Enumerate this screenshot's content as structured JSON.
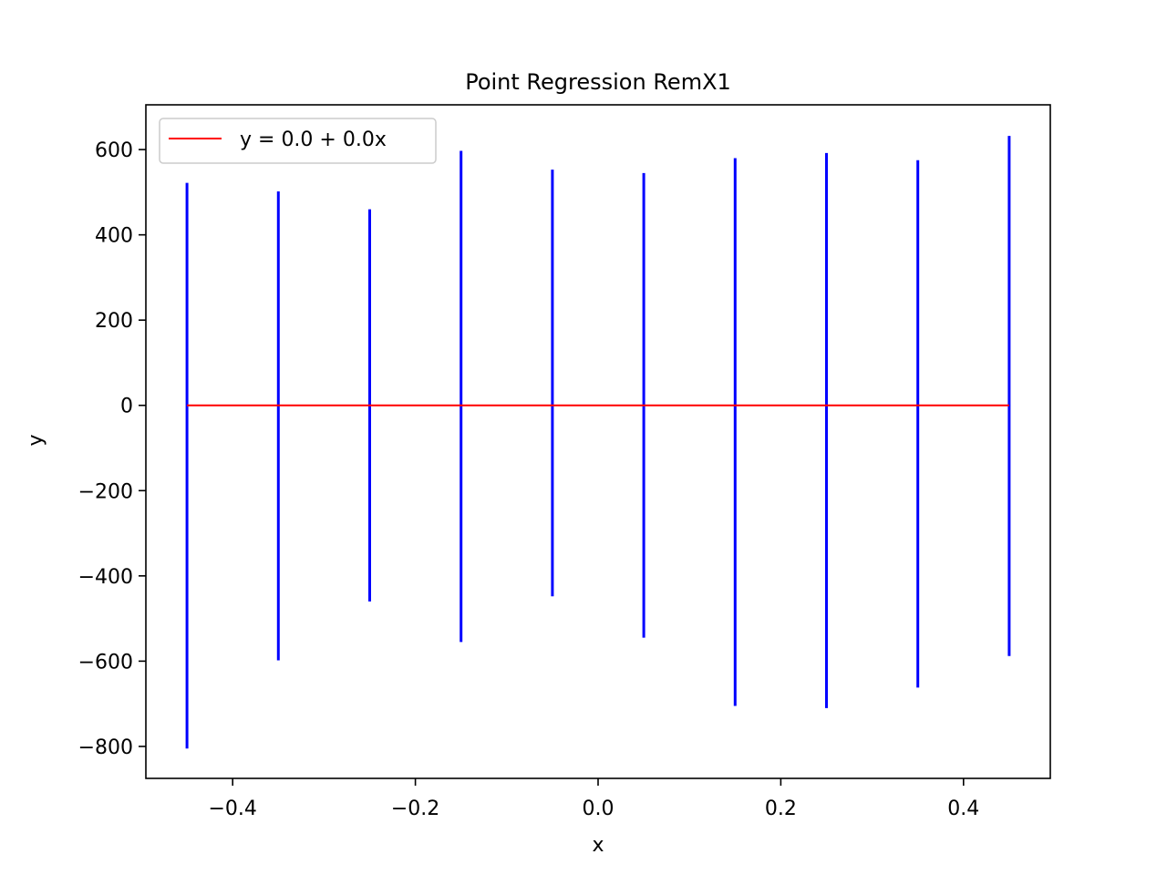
{
  "chart_data": {
    "type": "line",
    "title": "Point Regression RemX1",
    "xlabel": "x",
    "ylabel": "y",
    "xlim": [
      -0.495,
      0.495
    ],
    "ylim": [
      -875,
      705
    ],
    "xticks": [
      -0.4,
      -0.2,
      0.0,
      0.2,
      0.4
    ],
    "xtick_labels": [
      "−0.4",
      "−0.2",
      "0.0",
      "0.2",
      "0.4"
    ],
    "yticks": [
      600,
      400,
      200,
      0,
      -200,
      -400,
      -600,
      -800
    ],
    "ytick_labels": [
      "600",
      "400",
      "200",
      "0",
      "−200",
      "−400",
      "−600",
      "−800"
    ],
    "grid": false,
    "legend_position": "top-left",
    "colors": {
      "intervals": "#0000ff",
      "regression": "#ff0000",
      "axes": "#000000"
    },
    "intervals": {
      "x": [
        -0.45,
        -0.35,
        -0.25,
        -0.15,
        -0.05,
        0.05,
        0.15,
        0.25,
        0.35,
        0.45
      ],
      "y_low": [
        -805,
        -598,
        -460,
        -555,
        -448,
        -545,
        -705,
        -710,
        -662,
        -588
      ],
      "y_high": [
        522,
        502,
        460,
        597,
        553,
        545,
        580,
        592,
        575,
        632
      ]
    },
    "series": [
      {
        "name": "y = 0.0 + 0.0x",
        "x": [
          -0.45,
          0.45
        ],
        "y": [
          0.0,
          0.0
        ]
      }
    ]
  }
}
